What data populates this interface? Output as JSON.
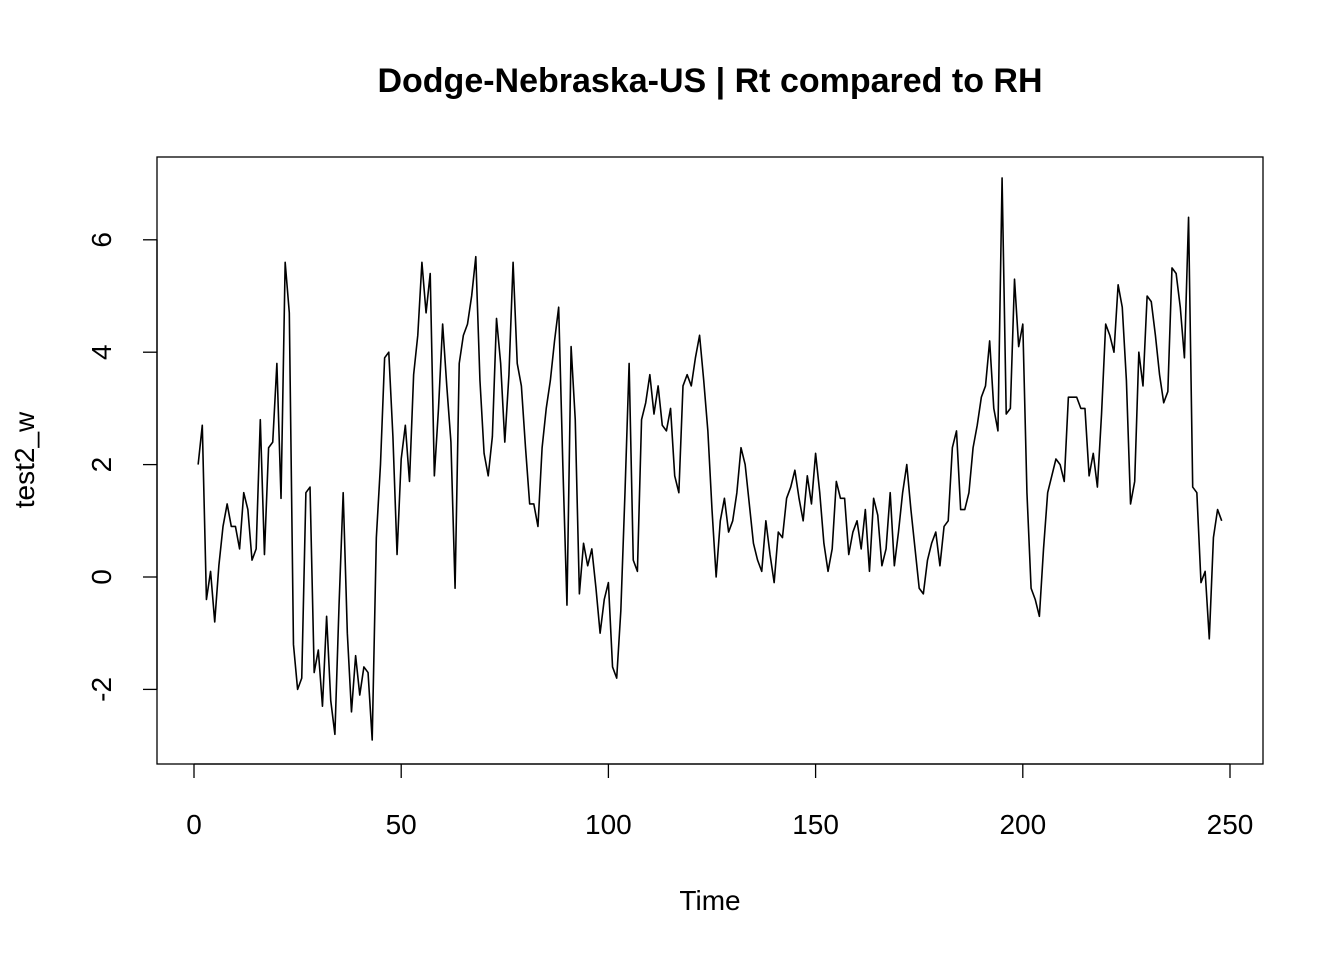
{
  "chart_data": {
    "type": "line",
    "title": "Dodge-Nebraska-US | Rt compared to RH",
    "xlabel": "Time",
    "ylabel": "test2_w",
    "xlim": [
      1,
      248
    ],
    "ylim": [
      -3,
      7
    ],
    "x_ticks": [
      0,
      50,
      100,
      150,
      200,
      250
    ],
    "x_tick_labels": [
      "0",
      "50",
      "100",
      "150",
      "200",
      "250"
    ],
    "y_ticks": [
      -2,
      0,
      2,
      4,
      6
    ],
    "y_tick_labels": [
      "-2",
      "0",
      "2",
      "4",
      "6"
    ],
    "grid": false,
    "legend": "none",
    "line_color": "#000000",
    "x_start": 1,
    "x_step": 1,
    "values": [
      2.0,
      2.7,
      -0.4,
      0.1,
      -0.8,
      0.2,
      0.9,
      1.3,
      0.9,
      0.9,
      0.5,
      1.5,
      1.2,
      0.3,
      0.5,
      2.8,
      0.4,
      2.3,
      2.4,
      3.8,
      1.4,
      5.6,
      4.7,
      -1.2,
      -2.0,
      -1.8,
      1.5,
      1.6,
      -1.7,
      -1.3,
      -2.3,
      -0.7,
      -2.2,
      -2.8,
      -0.5,
      1.5,
      -1.0,
      -2.4,
      -1.4,
      -2.1,
      -1.6,
      -1.7,
      -2.9,
      0.7,
      2.0,
      3.9,
      4.0,
      2.5,
      0.4,
      2.1,
      2.7,
      1.7,
      3.6,
      4.3,
      5.6,
      4.7,
      5.4,
      1.8,
      3.0,
      4.5,
      3.4,
      2.4,
      -0.2,
      3.8,
      4.3,
      4.5,
      5.0,
      5.7,
      3.5,
      2.2,
      1.8,
      2.5,
      4.6,
      3.8,
      2.4,
      3.6,
      5.6,
      3.8,
      3.4,
      2.3,
      1.3,
      1.3,
      0.9,
      2.3,
      3.0,
      3.5,
      4.2,
      4.8,
      2.0,
      -0.5,
      4.1,
      2.8,
      -0.3,
      0.6,
      0.2,
      0.5,
      -0.2,
      -1.0,
      -0.4,
      -0.1,
      -1.6,
      -1.8,
      -0.6,
      1.5,
      3.8,
      0.3,
      0.1,
      2.8,
      3.1,
      3.6,
      2.9,
      3.4,
      2.7,
      2.6,
      3.0,
      1.8,
      1.5,
      3.4,
      3.6,
      3.4,
      3.9,
      4.3,
      3.5,
      2.6,
      1.2,
      0.0,
      1.0,
      1.4,
      0.8,
      1.0,
      1.5,
      2.3,
      2.0,
      1.3,
      0.6,
      0.3,
      0.1,
      1.0,
      0.4,
      -0.1,
      0.8,
      0.7,
      1.4,
      1.6,
      1.9,
      1.4,
      1.0,
      1.8,
      1.3,
      2.2,
      1.5,
      0.6,
      0.1,
      0.5,
      1.7,
      1.4,
      1.4,
      0.4,
      0.8,
      1.0,
      0.5,
      1.2,
      0.1,
      1.4,
      1.1,
      0.2,
      0.5,
      1.5,
      0.2,
      0.8,
      1.5,
      2.0,
      1.2,
      0.5,
      -0.2,
      -0.3,
      0.3,
      0.6,
      0.8,
      0.2,
      0.9,
      1.0,
      2.3,
      2.6,
      1.2,
      1.2,
      1.5,
      2.3,
      2.7,
      3.2,
      3.4,
      4.2,
      3.0,
      2.6,
      7.1,
      2.9,
      3.0,
      5.3,
      4.1,
      4.5,
      1.5,
      -0.2,
      -0.4,
      -0.7,
      0.5,
      1.5,
      1.8,
      2.1,
      2.0,
      1.7,
      3.2,
      3.2,
      3.2,
      3.0,
      3.0,
      1.8,
      2.2,
      1.6,
      2.9,
      4.5,
      4.3,
      4.0,
      5.2,
      4.8,
      3.5,
      1.3,
      1.7,
      4.0,
      3.4,
      5.0,
      4.9,
      4.3,
      3.6,
      3.1,
      3.3,
      5.5,
      5.4,
      4.8,
      3.9,
      6.4,
      1.6,
      1.5,
      -0.1,
      0.1,
      -1.1,
      0.7,
      1.2,
      1.0
    ]
  }
}
